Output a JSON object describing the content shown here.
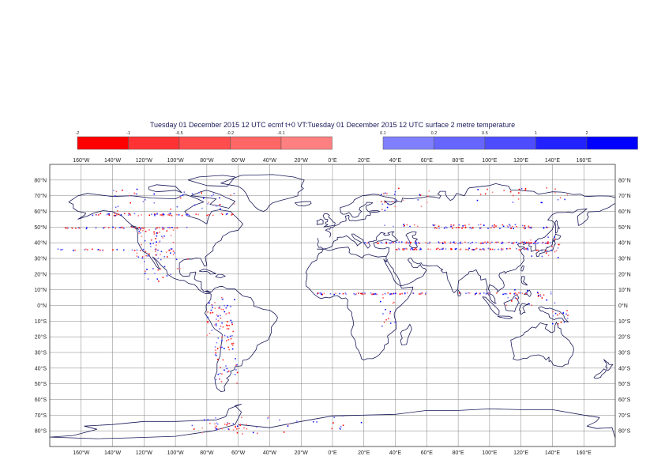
{
  "title": "Tuesday 01 December 2015 12 UTC ecmf t+0 VT:Tuesday 01 December 2015 12 UTC surface  2 metre temperature",
  "legend": {
    "negative": {
      "labels": [
        "-2",
        "-1",
        "-0.5",
        "-0.2",
        "-0.1"
      ],
      "colors": [
        "#ff0000",
        "#ff3333",
        "#ff4d4d",
        "#ff6666",
        "#ff8080"
      ]
    },
    "positive": {
      "labels": [
        "0.1",
        "0.2",
        "0.5",
        "1",
        "2"
      ],
      "colors": [
        "#8080ff",
        "#6666ff",
        "#4d4dff",
        "#2222ff",
        "#0000ff"
      ]
    }
  },
  "map": {
    "projection": "cylindrical",
    "lon_range": [
      -180,
      180
    ],
    "lat_range": [
      -90,
      90
    ],
    "gridlines": true,
    "coastline_color": "#1a1a5a",
    "grid_color": "#808080",
    "lon_ticks": [
      {
        "value": -160,
        "label": "160°W"
      },
      {
        "value": -140,
        "label": "140°W"
      },
      {
        "value": -120,
        "label": "120°W"
      },
      {
        "value": -100,
        "label": "100°W"
      },
      {
        "value": -80,
        "label": "80°W"
      },
      {
        "value": -60,
        "label": "60°W"
      },
      {
        "value": -40,
        "label": "40°W"
      },
      {
        "value": -20,
        "label": "20°W"
      },
      {
        "value": 0,
        "label": "0°E"
      },
      {
        "value": 20,
        "label": "20°E"
      },
      {
        "value": 40,
        "label": "40°E"
      },
      {
        "value": 60,
        "label": "60°E"
      },
      {
        "value": 80,
        "label": "80°E"
      },
      {
        "value": 100,
        "label": "100°E"
      },
      {
        "value": 120,
        "label": "120°E"
      },
      {
        "value": 140,
        "label": "140°E"
      },
      {
        "value": 160,
        "label": "160°E"
      }
    ],
    "lat_ticks": [
      {
        "value": 80,
        "label": "80°N"
      },
      {
        "value": 70,
        "label": "70°N"
      },
      {
        "value": 60,
        "label": "60°N"
      },
      {
        "value": 50,
        "label": "50°N"
      },
      {
        "value": 40,
        "label": "40°N"
      },
      {
        "value": 30,
        "label": "30°N"
      },
      {
        "value": 20,
        "label": "20°N"
      },
      {
        "value": 10,
        "label": "10°N"
      },
      {
        "value": 0,
        "label": "0°N"
      },
      {
        "value": -10,
        "label": "10°S"
      },
      {
        "value": -20,
        "label": "20°S"
      },
      {
        "value": -30,
        "label": "30°S"
      },
      {
        "value": -40,
        "label": "40°S"
      },
      {
        "value": -50,
        "label": "50°S"
      },
      {
        "value": -60,
        "label": "60°S"
      },
      {
        "value": -70,
        "label": "70°S"
      },
      {
        "value": -80,
        "label": "80°S"
      }
    ]
  }
}
